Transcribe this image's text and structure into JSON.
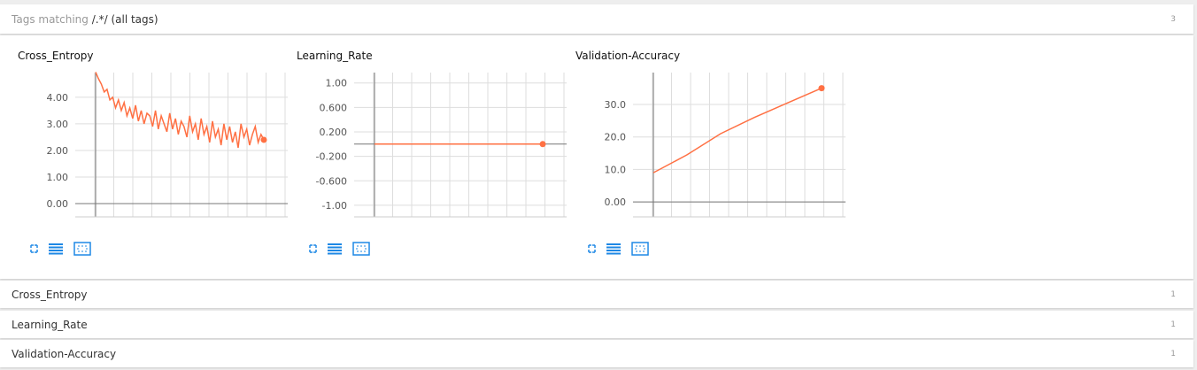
{
  "header": {
    "label": "Tags matching",
    "pattern": "/.*/",
    "note": "(all tags)",
    "count": 3
  },
  "chart_data": [
    {
      "type": "line",
      "title": "Cross_Entropy",
      "color": "#ff7043",
      "grid": true,
      "values": [
        4.95,
        4.7,
        4.5,
        4.2,
        4.3,
        3.9,
        4.0,
        3.6,
        3.9,
        3.5,
        3.8,
        3.3,
        3.6,
        3.2,
        3.7,
        3.1,
        3.5,
        3.0,
        3.4,
        3.3,
        2.9,
        3.5,
        2.8,
        3.3,
        3.0,
        2.7,
        3.4,
        2.8,
        3.2,
        2.6,
        3.1,
        2.9,
        2.5,
        3.3,
        2.7,
        3.0,
        2.4,
        3.2,
        2.6,
        2.9,
        2.3,
        3.1,
        2.5,
        2.8,
        2.2,
        3.0,
        2.4,
        2.9,
        2.3,
        2.7,
        2.1,
        3.0,
        2.5,
        2.8,
        2.2,
        2.6,
        2.9,
        2.3,
        2.6,
        2.4
      ],
      "ylim": [
        -0.5,
        4.93
      ],
      "yticks": [
        {
          "value": 0,
          "label": "0.00"
        },
        {
          "value": 1,
          "label": "1.00"
        },
        {
          "value": 2,
          "label": "2.00"
        },
        {
          "value": 3,
          "label": "3.00"
        },
        {
          "value": 4,
          "label": "4.00"
        }
      ]
    },
    {
      "type": "line",
      "title": "Learning_Rate",
      "color": "#ff7043",
      "grid": true,
      "values": [
        0,
        0,
        0,
        0,
        0,
        0,
        0,
        0,
        0,
        0
      ],
      "ylim": [
        -1.19,
        1.17
      ],
      "yticks": [
        {
          "value": -1,
          "label": "-1.00"
        },
        {
          "value": -0.6,
          "label": "-0.600"
        },
        {
          "value": -0.2,
          "label": "-0.200"
        },
        {
          "value": 0.2,
          "label": "0.200"
        },
        {
          "value": 0.6,
          "label": "0.600"
        },
        {
          "value": 1,
          "label": "1.00"
        }
      ]
    },
    {
      "type": "line",
      "title": "Validation-Accuracy",
      "color": "#ff7043",
      "grid": true,
      "values": [
        9,
        14.5,
        21,
        26,
        30.5,
        35
      ],
      "ylim": [
        -4.6,
        39.8
      ],
      "yticks": [
        {
          "value": 0,
          "label": "0.00"
        },
        {
          "value": 10,
          "label": "10.0"
        },
        {
          "value": 20,
          "label": "20.0"
        },
        {
          "value": 30,
          "label": "30.0"
        }
      ]
    }
  ],
  "sections": [
    {
      "name": "Cross_Entropy",
      "count": 1
    },
    {
      "name": "Learning_Rate",
      "count": 1
    },
    {
      "name": "Validation-Accuracy",
      "count": 1
    }
  ]
}
